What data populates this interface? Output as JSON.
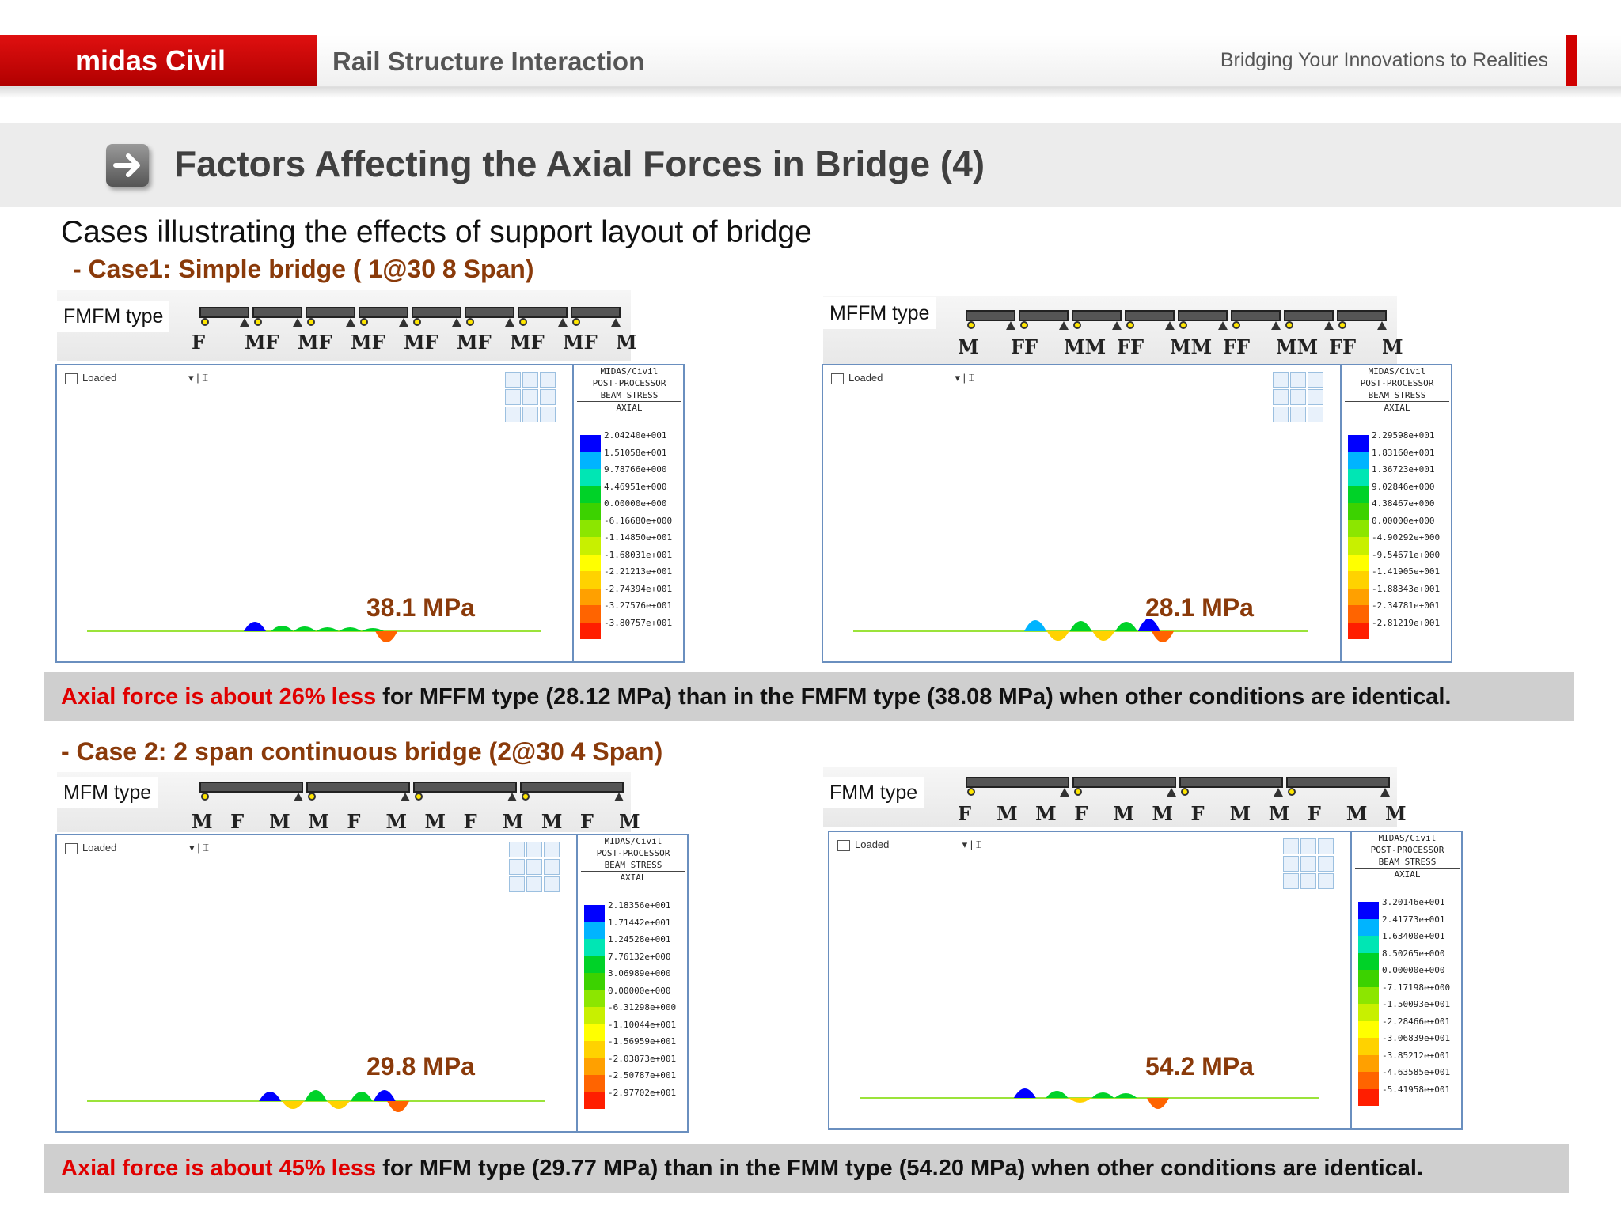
{
  "header": {
    "brand": "midas Civil",
    "app_title": "Rail Structure Interaction",
    "tagline": "Bridging Your Innovations to Realities"
  },
  "page": {
    "title_icon": "arrow-right-icon",
    "title": "Factors Affecting the Axial Forces in Bridge (4)",
    "subtitle": "Cases illustrating the effects of support layout of bridge"
  },
  "case1": {
    "heading": "- Case1: Simple bridge ( 1@30 8 Span)",
    "left": {
      "type_label": "FMFM type",
      "support_labels": [
        "F",
        "MF",
        "MF",
        "MF",
        "MF",
        "MF",
        "MF",
        "MF",
        "M"
      ],
      "loaded_label": "Loaded",
      "legend_header": [
        "MIDAS/Civil",
        "POST-PROCESSOR",
        "BEAM STRESS",
        "AXIAL"
      ],
      "legend_values": [
        "2.04240e+001",
        "1.51058e+001",
        "9.78766e+000",
        "4.46951e+000",
        "0.00000e+000",
        "-6.16680e+000",
        "-1.14850e+001",
        "-1.68031e+001",
        "-2.21213e+001",
        "-2.74394e+001",
        "-3.27576e+001",
        "-3.80757e+001"
      ],
      "max_stress": "38.1 MPa"
    },
    "right": {
      "type_label": "MFFM type",
      "support_labels": [
        "M",
        "FF",
        "MM",
        "FF",
        "MM",
        "FF",
        "MM",
        "FF",
        "M"
      ],
      "loaded_label": "Loaded",
      "legend_header": [
        "MIDAS/Civil",
        "POST-PROCESSOR",
        "BEAM STRESS",
        "AXIAL"
      ],
      "legend_values": [
        "2.29598e+001",
        "1.83160e+001",
        "1.36723e+001",
        "9.02846e+000",
        "4.38467e+000",
        "0.00000e+000",
        "-4.90292e+000",
        "-9.54671e+000",
        "-1.41905e+001",
        "-1.88343e+001",
        "-2.34781e+001",
        "-2.81219e+001"
      ],
      "max_stress": "28.1 MPa"
    },
    "note_highlight": "Axial force is about 26% less",
    "note_rest": " for MFFM type (28.12 MPa) than in the FMFM type (38.08 MPa) when other conditions are identical."
  },
  "case2": {
    "heading": "- Case 2: 2 span continuous bridge (2@30 4 Span)",
    "left": {
      "type_label": "MFM type",
      "support_labels": [
        "M",
        "F",
        "M",
        "M",
        "F",
        "M",
        "M",
        "F",
        "M",
        "M",
        "F",
        "M"
      ],
      "loaded_label": "Loaded",
      "legend_header": [
        "MIDAS/Civil",
        "POST-PROCESSOR",
        "BEAM STRESS",
        "AXIAL"
      ],
      "legend_values": [
        "2.18356e+001",
        "1.71442e+001",
        "1.24528e+001",
        "7.76132e+000",
        "3.06989e+000",
        "0.00000e+000",
        "-6.31298e+000",
        "-1.10044e+001",
        "-1.56959e+001",
        "-2.03873e+001",
        "-2.50787e+001",
        "-2.97702e+001"
      ],
      "max_stress": "29.8 MPa"
    },
    "right": {
      "type_label": "FMM type",
      "support_labels": [
        "F",
        "M",
        "M",
        "F",
        "M",
        "M",
        "F",
        "M",
        "M",
        "F",
        "M",
        "M"
      ],
      "loaded_label": "Loaded",
      "legend_header": [
        "MIDAS/Civil",
        "POST-PROCESSOR",
        "BEAM STRESS",
        "AXIAL"
      ],
      "legend_values": [
        "3.20146e+001",
        "2.41773e+001",
        "1.63400e+001",
        "8.50265e+000",
        "0.00000e+000",
        "-7.17198e+000",
        "-1.50093e+001",
        "-2.28466e+001",
        "-3.06839e+001",
        "-3.85212e+001",
        "-4.63585e+001",
        "-5.41958e+001"
      ],
      "max_stress": "54.2 MPa"
    },
    "note_highlight": "Axial force is about 45% less",
    "note_rest": " for MFM type (29.77 MPa) than in the FMM type (54.20 MPa) when other conditions are identical."
  },
  "colors": {
    "brand_red": "#d00000",
    "accent_text": "#8a3a0a",
    "legend_scale": [
      "#0000ff",
      "#00b4ff",
      "#00e6b4",
      "#00d228",
      "#3cd200",
      "#8ce600",
      "#c8f000",
      "#ffff00",
      "#ffd200",
      "#ffa000",
      "#ff6400",
      "#ff1e00"
    ]
  }
}
